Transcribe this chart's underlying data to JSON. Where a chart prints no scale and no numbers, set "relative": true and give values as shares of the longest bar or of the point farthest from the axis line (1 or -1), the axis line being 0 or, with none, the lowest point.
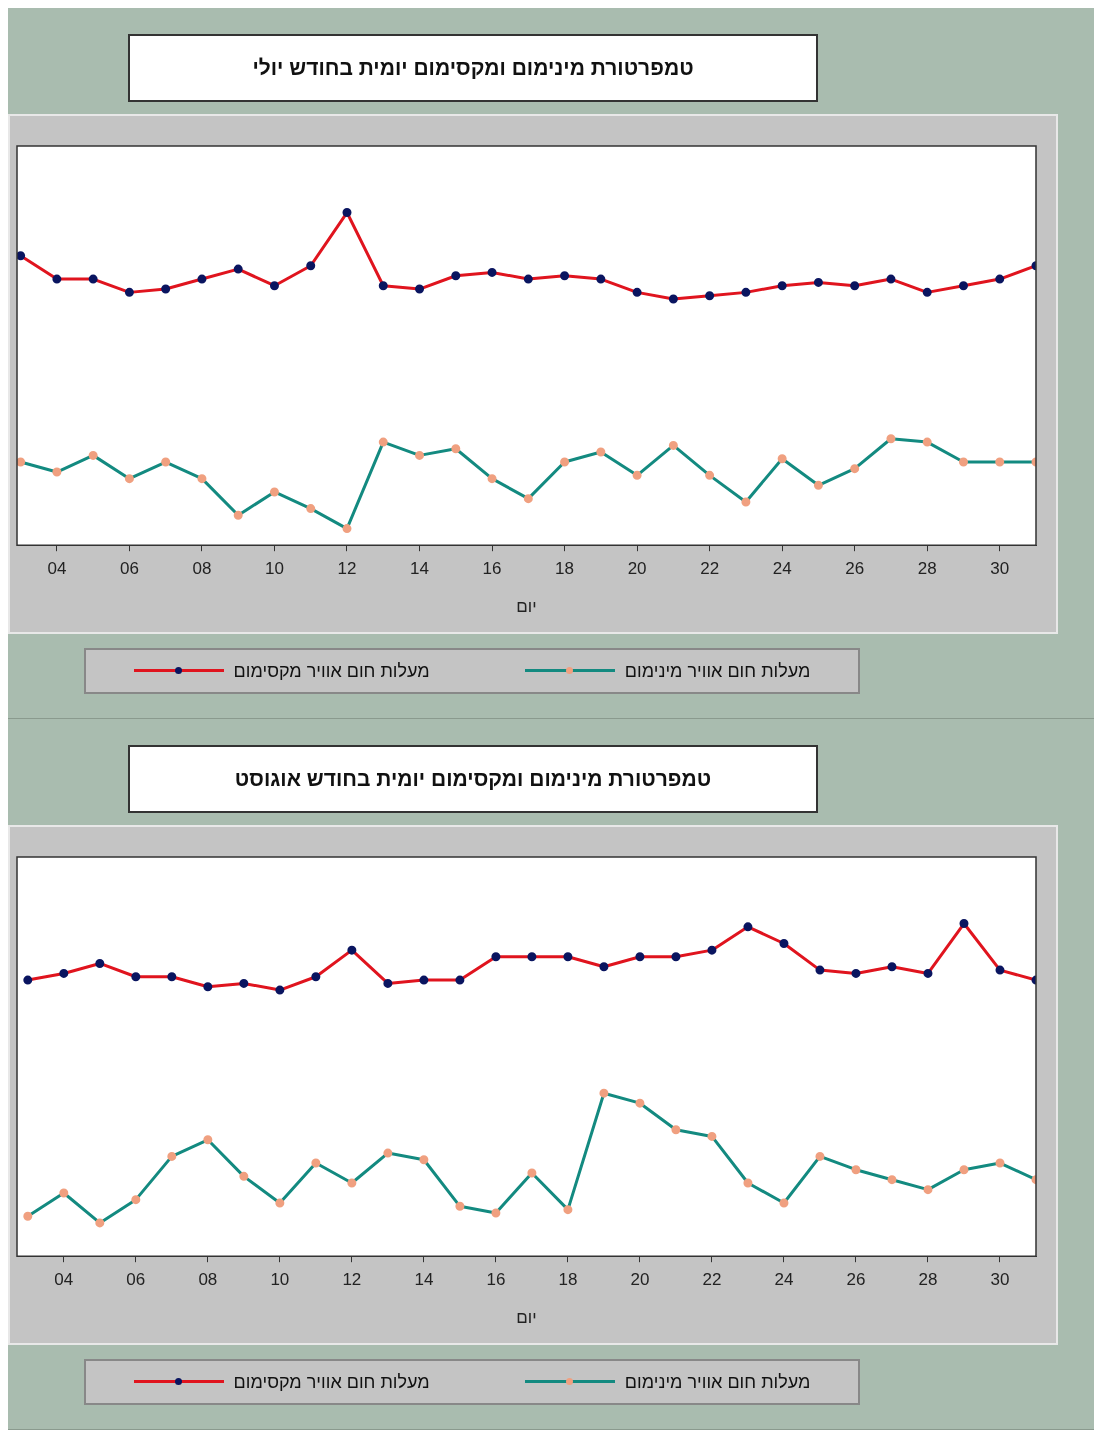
{
  "chart_data": [
    {
      "type": "line",
      "title": "טמפרטורת מינימום ומקסימום יומית בחודש יולי",
      "xlabel": "יום",
      "relative": true,
      "marker": "circle",
      "legend": "bottom",
      "grid": false,
      "tick_labels": "x",
      "xlim": [
        2.9,
        31
      ],
      "xticks": [
        {
          "value": 4,
          "label": "04"
        },
        {
          "value": 6,
          "label": "06"
        },
        {
          "value": 8,
          "label": "08"
        },
        10,
        12,
        14,
        16,
        18,
        20,
        22,
        24,
        26,
        28,
        30
      ],
      "x": [
        3,
        4,
        5,
        6,
        7,
        8,
        9,
        10,
        11,
        12,
        13,
        14,
        15,
        16,
        17,
        18,
        19,
        20,
        21,
        22,
        23,
        24,
        25,
        26,
        27,
        28,
        29,
        30,
        31
      ],
      "series": [
        {
          "name": "מעלות חום אוויר מינימום",
          "color": "#138a80",
          "values": [
            0.25,
            0.22,
            0.27,
            0.2,
            0.25,
            0.2,
            0.09,
            0.16,
            0.11,
            0.05,
            0.31,
            0.27,
            0.29,
            0.2,
            0.14,
            0.25,
            0.28,
            0.21,
            0.3,
            0.21,
            0.13,
            0.26,
            0.18,
            0.23,
            0.32,
            0.31,
            0.25,
            0.25,
            0.25
          ]
        },
        {
          "name": "מעלות חום אוויר מקסימום",
          "color": "#e0141e",
          "values": [
            0.87,
            0.8,
            0.8,
            0.76,
            0.77,
            0.8,
            0.83,
            0.78,
            0.84,
            1,
            0.78,
            0.77,
            0.81,
            0.82,
            0.8,
            0.81,
            0.8,
            0.76,
            0.74,
            0.75,
            0.76,
            0.78,
            0.79,
            0.78,
            0.8,
            0.76,
            0.78,
            0.8,
            0.84
          ]
        }
      ]
    },
    {
      "type": "line",
      "title": "טמפרטורת מינימום ומקסימום יומית בחודש אוגוסט",
      "xlabel": "יום",
      "relative": true,
      "marker": "circle",
      "legend": "bottom",
      "grid": false,
      "tick_labels": "x",
      "xlim": [
        2.7,
        31
      ],
      "xticks": [
        {
          "value": 4,
          "label": "04"
        },
        {
          "value": 6,
          "label": "06"
        },
        {
          "value": 8,
          "label": "08"
        },
        10,
        12,
        14,
        16,
        18,
        20,
        22,
        24,
        26,
        28,
        30
      ],
      "x": [
        3,
        4,
        5,
        6,
        7,
        8,
        9,
        10,
        11,
        12,
        13,
        14,
        15,
        16,
        17,
        18,
        19,
        20,
        21,
        22,
        23,
        24,
        25,
        26,
        27,
        28,
        29,
        30,
        31
      ],
      "series": [
        {
          "name": "מעלות חום אוויר מינימום",
          "color": "#138a80",
          "values": [
            0.12,
            0.19,
            0.1,
            0.17,
            0.3,
            0.35,
            0.24,
            0.16,
            0.28,
            0.22,
            0.31,
            0.29,
            0.15,
            0.13,
            0.25,
            0.14,
            0.49,
            0.46,
            0.38,
            0.36,
            0.22,
            0.16,
            0.3,
            0.26,
            0.23,
            0.2,
            0.26,
            0.28,
            0.23
          ]
        },
        {
          "name": "מעלות חום אוויר מקסימום",
          "color": "#e0141e",
          "values": [
            0.83,
            0.85,
            0.88,
            0.84,
            0.84,
            0.81,
            0.82,
            0.8,
            0.84,
            0.92,
            0.82,
            0.83,
            0.83,
            0.9,
            0.9,
            0.9,
            0.87,
            0.9,
            0.9,
            0.92,
            0.99,
            0.94,
            0.86,
            0.85,
            0.87,
            0.85,
            1,
            0.86,
            0.83
          ]
        }
      ]
    }
  ]
}
